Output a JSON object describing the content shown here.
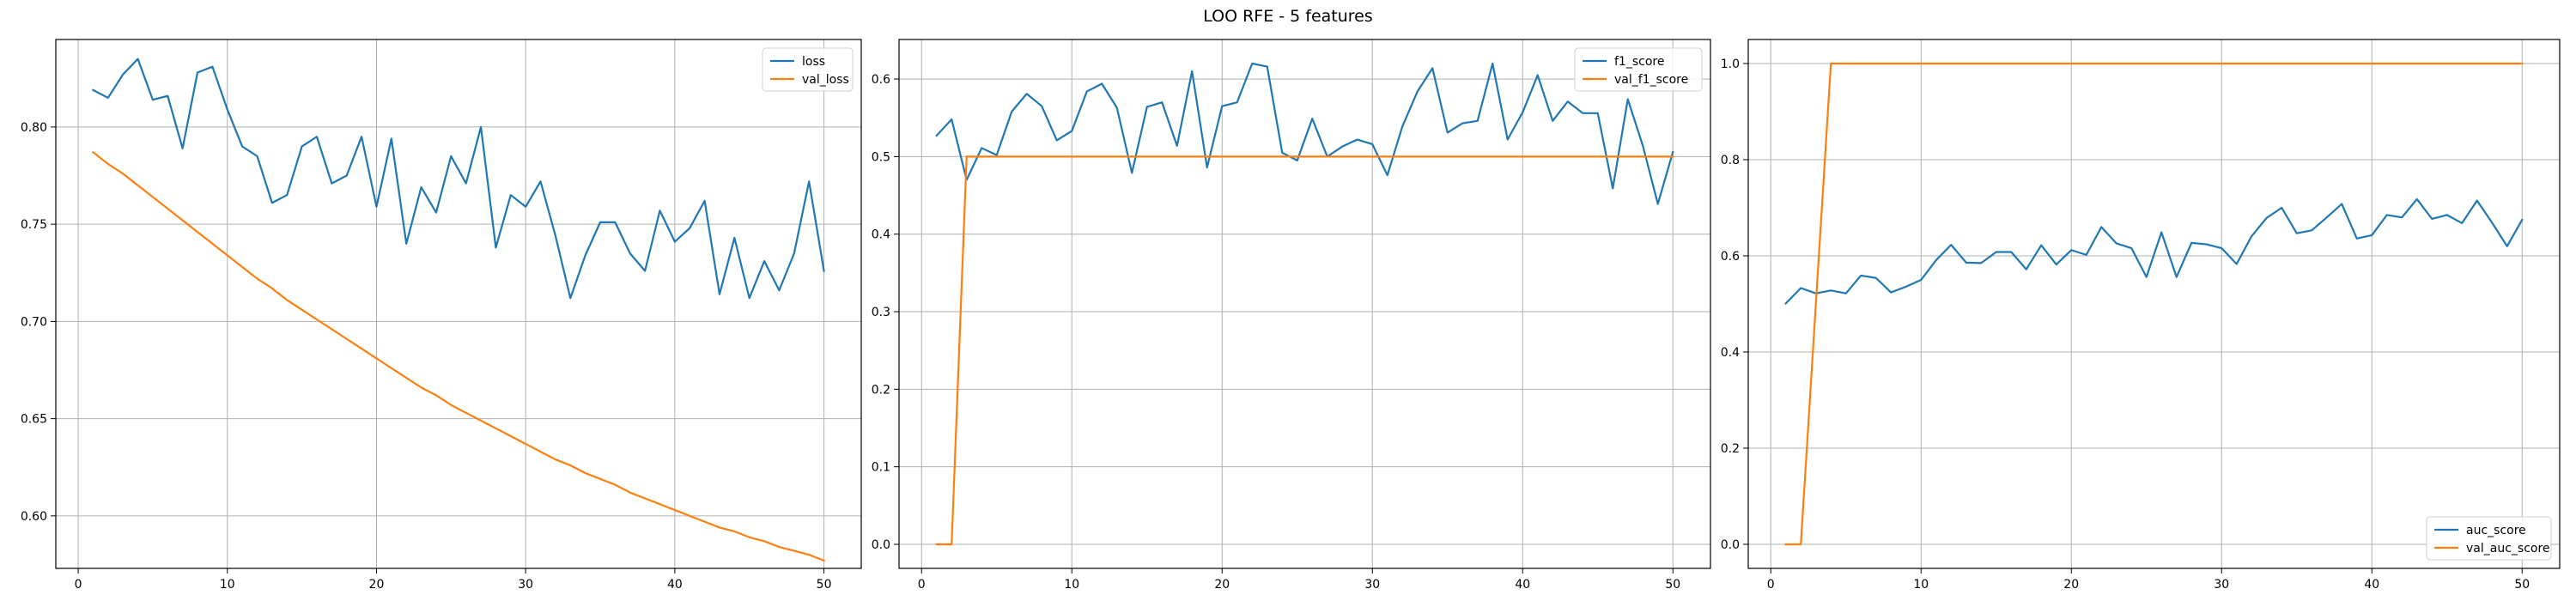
{
  "figure": {
    "title": "LOO RFE - 5 features"
  },
  "colors": {
    "series1": "#1f77b4",
    "series2": "#ff7f0e",
    "grid": "#b0b0b0",
    "axis": "#000000"
  },
  "chart_data": [
    {
      "type": "line",
      "title": "",
      "xlabel": "",
      "ylabel": "",
      "xlim": [
        -1.5,
        52.5
      ],
      "ylim": [
        0.573,
        0.845
      ],
      "xticks": [
        0,
        10,
        20,
        30,
        40,
        50
      ],
      "yticks": [
        0.6,
        0.65,
        0.7,
        0.75,
        0.8
      ],
      "ytick_labels": [
        "0.60",
        "0.65",
        "0.70",
        "0.75",
        "0.80"
      ],
      "grid": true,
      "legend": "upper right",
      "x": [
        1,
        2,
        3,
        4,
        5,
        6,
        7,
        8,
        9,
        10,
        11,
        12,
        13,
        14,
        15,
        16,
        17,
        18,
        19,
        20,
        21,
        22,
        23,
        24,
        25,
        26,
        27,
        28,
        29,
        30,
        31,
        32,
        33,
        34,
        35,
        36,
        37,
        38,
        39,
        40,
        41,
        42,
        43,
        44,
        45,
        46,
        47,
        48,
        49,
        50
      ],
      "series": [
        {
          "name": "loss",
          "color": "#1f77b4",
          "values": [
            0.819,
            0.815,
            0.827,
            0.835,
            0.814,
            0.816,
            0.789,
            0.828,
            0.831,
            0.809,
            0.79,
            0.785,
            0.761,
            0.765,
            0.79,
            0.795,
            0.771,
            0.775,
            0.795,
            0.759,
            0.794,
            0.74,
            0.769,
            0.756,
            0.785,
            0.771,
            0.8,
            0.738,
            0.765,
            0.759,
            0.772,
            0.744,
            0.712,
            0.734,
            0.751,
            0.751,
            0.735,
            0.726,
            0.757,
            0.741,
            0.748,
            0.762,
            0.714,
            0.743,
            0.712,
            0.731,
            0.716,
            0.735,
            0.772,
            0.726
          ]
        },
        {
          "name": "val_loss",
          "color": "#ff7f0e",
          "values": [
            0.787,
            0.781,
            0.776,
            0.77,
            0.764,
            0.758,
            0.752,
            0.746,
            0.74,
            0.734,
            0.728,
            0.722,
            0.717,
            0.711,
            0.706,
            0.701,
            0.696,
            0.691,
            0.686,
            0.681,
            0.676,
            0.671,
            0.666,
            0.662,
            0.657,
            0.653,
            0.649,
            0.645,
            0.641,
            0.637,
            0.633,
            0.629,
            0.626,
            0.622,
            0.619,
            0.616,
            0.612,
            0.609,
            0.606,
            0.603,
            0.6,
            0.597,
            0.594,
            0.592,
            0.589,
            0.587,
            0.584,
            0.582,
            0.58,
            0.577
          ]
        }
      ]
    },
    {
      "type": "line",
      "title": "",
      "xlabel": "",
      "ylabel": "",
      "xlim": [
        -1.5,
        52.5
      ],
      "ylim": [
        -0.031,
        0.651
      ],
      "xticks": [
        0,
        10,
        20,
        30,
        40,
        50
      ],
      "yticks": [
        0.0,
        0.1,
        0.2,
        0.3,
        0.4,
        0.5,
        0.6
      ],
      "ytick_labels": [
        "0.0",
        "0.1",
        "0.2",
        "0.3",
        "0.4",
        "0.5",
        "0.6"
      ],
      "grid": true,
      "legend": "upper right",
      "x": [
        1,
        2,
        3,
        4,
        5,
        6,
        7,
        8,
        9,
        10,
        11,
        12,
        13,
        14,
        15,
        16,
        17,
        18,
        19,
        20,
        21,
        22,
        23,
        24,
        25,
        26,
        27,
        28,
        29,
        30,
        31,
        32,
        33,
        34,
        35,
        36,
        37,
        38,
        39,
        40,
        41,
        42,
        43,
        44,
        45,
        46,
        47,
        48,
        49,
        50
      ],
      "series": [
        {
          "name": "f1_score",
          "color": "#1f77b4",
          "values": [
            0.527,
            0.548,
            0.47,
            0.511,
            0.502,
            0.558,
            0.581,
            0.565,
            0.521,
            0.533,
            0.584,
            0.594,
            0.563,
            0.479,
            0.564,
            0.57,
            0.514,
            0.61,
            0.486,
            0.565,
            0.57,
            0.62,
            0.616,
            0.505,
            0.495,
            0.549,
            0.5,
            0.513,
            0.522,
            0.516,
            0.476,
            0.539,
            0.584,
            0.614,
            0.531,
            0.543,
            0.546,
            0.62,
            0.522,
            0.557,
            0.605,
            0.546,
            0.571,
            0.556,
            0.556,
            0.459,
            0.574,
            0.514,
            0.439,
            0.506
          ]
        },
        {
          "name": "val_f1_score",
          "color": "#ff7f0e",
          "values": [
            0,
            0,
            0.5,
            0.5,
            0.5,
            0.5,
            0.5,
            0.5,
            0.5,
            0.5,
            0.5,
            0.5,
            0.5,
            0.5,
            0.5,
            0.5,
            0.5,
            0.5,
            0.5,
            0.5,
            0.5,
            0.5,
            0.5,
            0.5,
            0.5,
            0.5,
            0.5,
            0.5,
            0.5,
            0.5,
            0.5,
            0.5,
            0.5,
            0.5,
            0.5,
            0.5,
            0.5,
            0.5,
            0.5,
            0.5,
            0.5,
            0.5,
            0.5,
            0.5,
            0.5,
            0.5,
            0.5,
            0.5,
            0.5,
            0.5
          ]
        }
      ]
    },
    {
      "type": "line",
      "title": "",
      "xlabel": "",
      "ylabel": "",
      "xlim": [
        -1.5,
        52.5
      ],
      "ylim": [
        -0.05,
        1.05
      ],
      "xticks": [
        0,
        10,
        20,
        30,
        40,
        50
      ],
      "yticks": [
        0.0,
        0.2,
        0.4,
        0.6,
        0.8,
        1.0
      ],
      "ytick_labels": [
        "0.0",
        "0.2",
        "0.4",
        "0.6",
        "0.8",
        "1.0"
      ],
      "grid": true,
      "legend": "lower right",
      "x": [
        1,
        2,
        3,
        4,
        5,
        6,
        7,
        8,
        9,
        10,
        11,
        12,
        13,
        14,
        15,
        16,
        17,
        18,
        19,
        20,
        21,
        22,
        23,
        24,
        25,
        26,
        27,
        28,
        29,
        30,
        31,
        32,
        33,
        34,
        35,
        36,
        37,
        38,
        39,
        40,
        41,
        42,
        43,
        44,
        45,
        46,
        47,
        48,
        49,
        50
      ],
      "series": [
        {
          "name": "auc_score",
          "color": "#1f77b4",
          "values": [
            0.501,
            0.533,
            0.522,
            0.528,
            0.522,
            0.559,
            0.554,
            0.524,
            0.536,
            0.55,
            0.591,
            0.623,
            0.586,
            0.585,
            0.608,
            0.608,
            0.572,
            0.622,
            0.582,
            0.612,
            0.602,
            0.66,
            0.626,
            0.616,
            0.556,
            0.649,
            0.556,
            0.627,
            0.624,
            0.616,
            0.583,
            0.641,
            0.679,
            0.7,
            0.647,
            0.653,
            0.68,
            0.708,
            0.636,
            0.643,
            0.685,
            0.68,
            0.718,
            0.677,
            0.685,
            0.668,
            0.715,
            0.669,
            0.62,
            0.675
          ]
        },
        {
          "name": "val_auc_score",
          "color": "#ff7f0e",
          "values": [
            0,
            0,
            0.5,
            1,
            1,
            1,
            1,
            1,
            1,
            1,
            1,
            1,
            1,
            1,
            1,
            1,
            1,
            1,
            1,
            1,
            1,
            1,
            1,
            1,
            1,
            1,
            1,
            1,
            1,
            1,
            1,
            1,
            1,
            1,
            1,
            1,
            1,
            1,
            1,
            1,
            1,
            1,
            1,
            1,
            1,
            1,
            1,
            1,
            1,
            1
          ]
        }
      ]
    }
  ]
}
